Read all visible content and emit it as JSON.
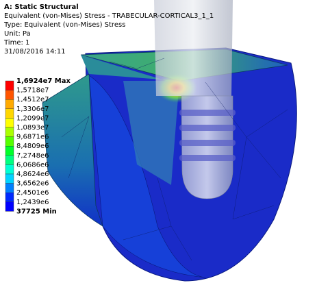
{
  "header": {
    "title": "A: Static Structural",
    "lines": [
      "Equivalent (von-Mises) Stress - TRABECULAR-CORTICAL3_1_1",
      "Type: Equivalent (von-Mises) Stress",
      "Unit: Pa",
      "Time: 1",
      "31/08/2016 14:11"
    ]
  },
  "legend": {
    "labels": [
      "1,6924e7 Max",
      "1,5718e7",
      "1,4512e7",
      "1,3306e7",
      "1,2099e7",
      "1,0893e7",
      "9,6871e6",
      "8,4809e6",
      "7,2748e6",
      "6,0686e6",
      "4,8624e6",
      "3,6562e6",
      "2,4501e6",
      "1,2439e6",
      "37725 Min"
    ],
    "colors": [
      "#ff0000",
      "#ff5500",
      "#ffaa00",
      "#ffd700",
      "#ffff00",
      "#aaff00",
      "#55ff00",
      "#00ff2a",
      "#00ff80",
      "#00ffd4",
      "#00d4ff",
      "#0080ff",
      "#002aff",
      "#0000ff"
    ]
  }
}
